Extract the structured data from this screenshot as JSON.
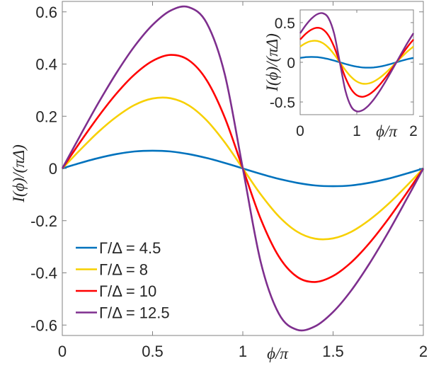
{
  "chart_data": [
    {
      "type": "line",
      "xlabel": "ϕ/π",
      "ylabel": "I(ϕ)/(πΔ)",
      "xlim": [
        0,
        2
      ],
      "ylim": [
        -0.64,
        0.64
      ],
      "xticks": [
        "0",
        "0.5",
        "1",
        "1.5",
        "2"
      ],
      "yticks": [
        "-0.6",
        "-0.4",
        "-0.2",
        "0",
        "0.2",
        "0.4",
        "0.6"
      ],
      "grid": false,
      "legend_position": "bottom-left",
      "x": [
        0,
        0.1,
        0.2,
        0.3,
        0.4,
        0.5,
        0.6,
        0.7,
        0.8,
        0.9,
        1.0,
        1.1,
        1.2,
        1.3,
        1.4,
        1.5,
        1.6,
        1.7,
        1.8,
        1.9,
        2.0
      ],
      "series": [
        {
          "name": "Γ/Δ = 4.5",
          "color": "#0072BD",
          "values": [
            0,
            0.021,
            0.04,
            0.055,
            0.065,
            0.068,
            0.065,
            0.055,
            0.04,
            0.021,
            0,
            -0.021,
            -0.04,
            -0.055,
            -0.065,
            -0.068,
            -0.065,
            -0.055,
            -0.04,
            -0.021,
            0
          ]
        },
        {
          "name": "Γ/Δ = 8",
          "color": "#F7D000",
          "values": [
            0,
            0.072,
            0.14,
            0.198,
            0.243,
            0.268,
            0.269,
            0.242,
            0.184,
            0.1,
            0,
            -0.1,
            -0.184,
            -0.242,
            -0.269,
            -0.268,
            -0.243,
            -0.198,
            -0.14,
            -0.072,
            0
          ]
        },
        {
          "name": "Γ/Δ = 10",
          "color": "#FF0000",
          "values": [
            0,
            0.102,
            0.199,
            0.287,
            0.36,
            0.412,
            0.435,
            0.415,
            0.338,
            0.195,
            0,
            -0.195,
            -0.338,
            -0.415,
            -0.435,
            -0.412,
            -0.36,
            -0.287,
            -0.199,
            -0.102,
            0
          ]
        },
        {
          "name": "Γ/Δ = 12.5",
          "color": "#7E2F8E",
          "values": [
            0,
            0.127,
            0.251,
            0.366,
            0.468,
            0.55,
            0.605,
            0.618,
            0.557,
            0.361,
            0,
            -0.361,
            -0.557,
            -0.618,
            -0.605,
            -0.55,
            -0.468,
            -0.366,
            -0.251,
            -0.127,
            0
          ]
        }
      ]
    },
    {
      "type": "line",
      "xlabel": "ϕ/π",
      "ylabel": "I(ϕ)/(πΔ)",
      "xlim": [
        0,
        2
      ],
      "ylim": [
        -0.66,
        0.66
      ],
      "xticks": [
        "0",
        "1",
        "2"
      ],
      "yticks": [
        "-0.5",
        "0",
        "0.5"
      ],
      "grid": false,
      "x": [
        0,
        0.1,
        0.2,
        0.3,
        0.4,
        0.5,
        0.6,
        0.7,
        0.8,
        0.9,
        1.0,
        1.1,
        1.2,
        1.3,
        1.4,
        1.5,
        1.6,
        1.7,
        1.8,
        1.9,
        2.0
      ],
      "series": [
        {
          "color": "#0072BD",
          "values": [
            0.055,
            0.065,
            0.068,
            0.065,
            0.055,
            0.04,
            0.021,
            0,
            -0.021,
            -0.04,
            -0.055,
            -0.065,
            -0.068,
            -0.065,
            -0.055,
            -0.04,
            -0.021,
            0,
            0.021,
            0.04,
            0.055
          ]
        },
        {
          "color": "#F7D000",
          "values": [
            0.198,
            0.243,
            0.268,
            0.269,
            0.242,
            0.184,
            0.1,
            0,
            -0.1,
            -0.184,
            -0.242,
            -0.269,
            -0.268,
            -0.243,
            -0.198,
            -0.14,
            -0.072,
            0,
            0.072,
            0.14,
            0.198
          ]
        },
        {
          "color": "#FF0000",
          "values": [
            0.287,
            0.36,
            0.412,
            0.435,
            0.415,
            0.338,
            0.195,
            0,
            -0.195,
            -0.338,
            -0.415,
            -0.435,
            -0.412,
            -0.36,
            -0.287,
            -0.199,
            -0.102,
            0,
            0.102,
            0.199,
            0.287
          ]
        },
        {
          "color": "#7E2F8E",
          "values": [
            0.366,
            0.468,
            0.55,
            0.605,
            0.618,
            0.557,
            0.361,
            0,
            -0.361,
            -0.557,
            -0.618,
            -0.605,
            -0.55,
            -0.468,
            -0.366,
            -0.251,
            -0.127,
            0,
            0.127,
            0.251,
            0.366
          ]
        }
      ]
    }
  ]
}
